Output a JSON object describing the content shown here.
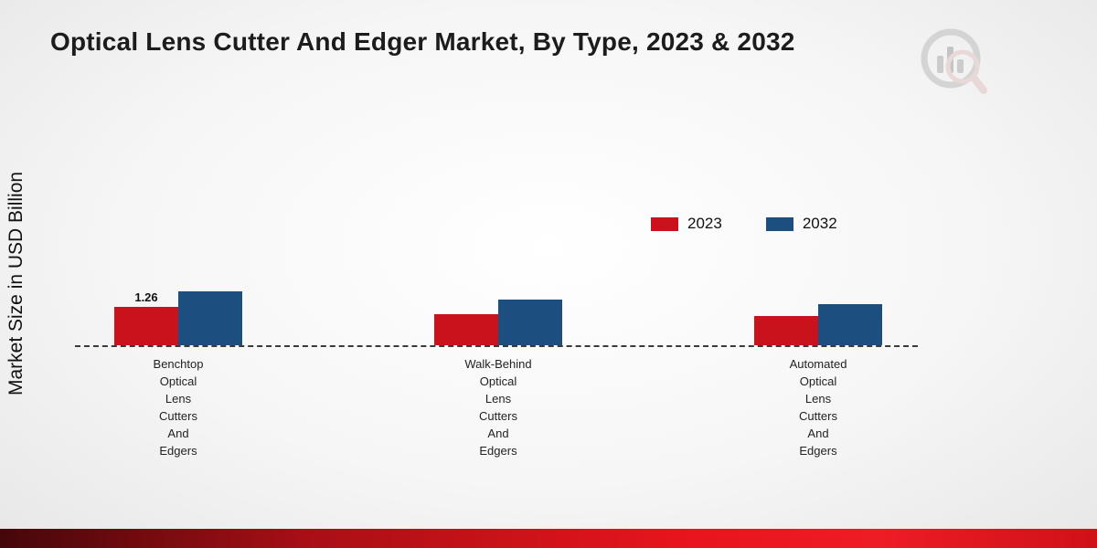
{
  "header": {
    "title": "Optical Lens Cutter And Edger Market, By Type, 2023 & 2032"
  },
  "ylabel": "Market Size in USD Billion",
  "legend": {
    "items": [
      {
        "label": "2023",
        "color": "#c9121b"
      },
      {
        "label": "2032",
        "color": "#1c4e80"
      }
    ]
  },
  "chart_data": {
    "type": "bar",
    "title": "Optical Lens Cutter And Edger Market, By Type, 2023 & 2032",
    "xlabel": "",
    "ylabel": "Market Size in USD Billion",
    "categories": [
      "Benchtop Optical Lens Cutters And Edgers",
      "Walk-Behind Optical Lens Cutters And Edgers",
      "Automated Optical Lens Cutters And Edgers"
    ],
    "series": [
      {
        "name": "2023",
        "color": "#c9121b",
        "values": [
          1.26,
          1.02,
          0.97
        ],
        "value_labels": [
          "1.26",
          "",
          ""
        ]
      },
      {
        "name": "2032",
        "color": "#1c4e80",
        "values": [
          1.78,
          1.5,
          1.35
        ],
        "value_labels": [
          "",
          "",
          ""
        ]
      }
    ],
    "ylim": [
      0,
      2.2
    ],
    "grid": false,
    "legend_position": "upper-right",
    "baseline_style": "dashed",
    "units": "USD Billion"
  }
}
